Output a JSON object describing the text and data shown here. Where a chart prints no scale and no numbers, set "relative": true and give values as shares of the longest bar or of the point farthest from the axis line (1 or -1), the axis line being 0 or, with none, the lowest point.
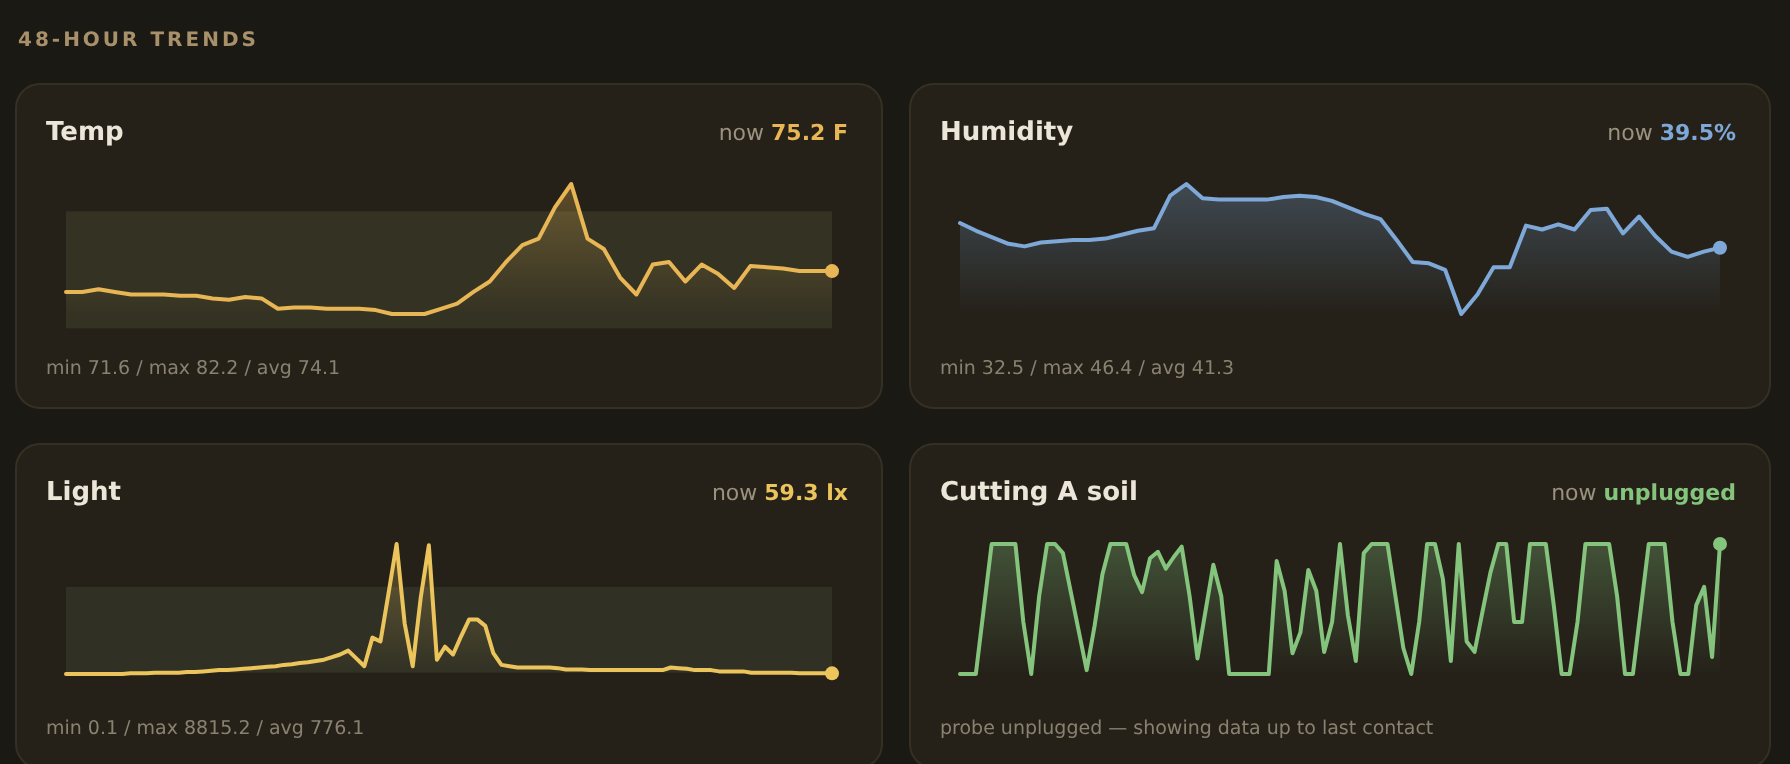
{
  "chart_data": [
    {
      "type": "line",
      "title": "Temp",
      "relative": true,
      "annotations": [
        "now",
        "75.2 F",
        "min 71.6 / max 82.2 / avg 74.1",
        "48-HOUR TRENDS"
      ],
      "bands": [
        {
          "axis": "y",
          "from": -0.11,
          "to": 0.79,
          "color": "#3a3a28"
        }
      ],
      "categories": [
        null,
        null,
        null,
        null,
        null,
        null,
        null,
        null,
        null,
        null,
        null,
        null,
        null,
        null,
        null,
        null,
        null,
        null,
        null,
        null,
        null,
        null,
        null,
        null,
        null,
        null,
        null,
        null,
        null,
        null,
        null,
        null,
        null,
        null,
        null,
        null,
        null,
        null,
        null,
        null,
        null,
        null,
        null,
        null,
        null,
        null,
        null,
        null
      ],
      "series": [
        {
          "color": "#e8b654",
          "values": [
            0.17,
            0.17,
            0.19,
            0.17,
            0.15,
            0.15,
            0.15,
            0.14,
            0.14,
            0.12,
            0.11,
            0.13,
            0.12,
            0.04,
            0.05,
            0.05,
            0.04,
            0.04,
            0.04,
            0.03,
            0,
            0,
            0,
            0.04,
            0.08,
            0.17,
            0.25,
            0.4,
            0.53,
            0.58,
            0.82,
            1,
            0.58,
            0.5,
            0.28,
            0.15,
            0.38,
            0.4,
            0.25,
            0.38,
            0.31,
            0.2,
            0.37,
            0.36,
            0.35,
            0.33,
            0.33,
            0.33
          ]
        }
      ]
    },
    {
      "type": "line",
      "title": "Humidity",
      "relative": true,
      "annotations": [
        "now",
        "39.5%",
        "min 32.5 / max 46.4 / avg 41.3"
      ],
      "categories": [
        null,
        null,
        null,
        null,
        null,
        null,
        null,
        null,
        null,
        null,
        null,
        null,
        null,
        null,
        null,
        null,
        null,
        null,
        null,
        null,
        null,
        null,
        null,
        null,
        null,
        null,
        null,
        null,
        null,
        null,
        null,
        null,
        null,
        null,
        null,
        null,
        null,
        null,
        null,
        null,
        null,
        null,
        null,
        null,
        null,
        null,
        null,
        null
      ],
      "series": [
        {
          "color": "#7ea8d8",
          "values": [
            0.7,
            0.64,
            0.59,
            0.54,
            0.52,
            0.55,
            0.56,
            0.57,
            0.57,
            0.58,
            0.61,
            0.64,
            0.66,
            0.91,
            1,
            0.89,
            0.88,
            0.88,
            0.88,
            0.88,
            0.9,
            0.91,
            0.9,
            0.87,
            0.82,
            0.77,
            0.73,
            0.57,
            0.4,
            0.39,
            0.34,
            0,
            0.15,
            0.36,
            0.36,
            0.68,
            0.65,
            0.69,
            0.65,
            0.8,
            0.81,
            0.62,
            0.75,
            0.6,
            0.48,
            0.44,
            0.48,
            0.51
          ]
        }
      ]
    },
    {
      "type": "line",
      "title": "Light",
      "relative": true,
      "annotations": [
        "now",
        "59.3 lx",
        "min 0.1 / max 8815.2 / avg 776.1"
      ],
      "bands": [
        {
          "axis": "y",
          "from": 0.01,
          "to": 0.67,
          "color": "#34382a"
        }
      ],
      "categories": [
        null,
        null,
        null,
        null,
        null,
        null,
        null,
        null,
        null,
        null,
        null,
        null,
        null,
        null,
        null,
        null,
        null,
        null,
        null,
        null,
        null,
        null,
        null,
        null,
        null,
        null,
        null,
        null,
        null,
        null,
        null,
        null,
        null,
        null,
        null,
        null,
        null,
        null,
        null,
        null,
        null,
        null,
        null,
        null,
        null,
        null,
        null,
        null,
        null,
        null,
        null,
        null,
        null,
        null,
        null,
        null,
        null,
        null,
        null,
        null,
        null,
        null,
        null,
        null,
        null,
        null,
        null,
        null,
        null,
        null,
        null,
        null,
        null,
        null,
        null,
        null,
        null,
        null,
        null,
        null,
        null,
        null,
        null,
        null,
        null,
        null,
        null,
        null,
        null,
        null,
        null,
        null,
        null,
        null,
        null,
        null
      ],
      "series": [
        {
          "color": "#ecc45c",
          "values": [
            0,
            0,
            0,
            0,
            0,
            0,
            0,
            0,
            0.005,
            0.005,
            0.005,
            0.01,
            0.01,
            0.01,
            0.01,
            0.015,
            0.015,
            0.02,
            0.025,
            0.03,
            0.03,
            0.035,
            0.04,
            0.045,
            0.05,
            0.055,
            0.06,
            0.07,
            0.075,
            0.085,
            0.09,
            0.1,
            0.11,
            0.13,
            0.15,
            0.18,
            0.12,
            0.06,
            0.28,
            0.25,
            0.62,
            1,
            0.39,
            0.06,
            0.59,
            0.99,
            0.11,
            0.21,
            0.15,
            0.29,
            0.42,
            0.42,
            0.37,
            0.16,
            0.07,
            0.06,
            0.05,
            0.05,
            0.05,
            0.05,
            0.05,
            0.045,
            0.035,
            0.035,
            0.035,
            0.03,
            0.03,
            0.03,
            0.03,
            0.03,
            0.03,
            0.03,
            0.03,
            0.03,
            0.03,
            0.05,
            0.045,
            0.04,
            0.03,
            0.03,
            0.03,
            0.02,
            0.02,
            0.02,
            0.02,
            0.01,
            0.01,
            0.01,
            0.01,
            0.01,
            0.01,
            0.005,
            0.005,
            0.005,
            0.005,
            0.005
          ]
        }
      ]
    },
    {
      "type": "line",
      "title": "Cutting A soil",
      "relative": true,
      "annotations": [
        "now",
        "unplugged",
        "probe unplugged — showing data up to last contact"
      ],
      "categories": [
        null,
        null,
        null,
        null,
        null,
        null,
        null,
        null,
        null,
        null,
        null,
        null,
        null,
        null,
        null,
        null,
        null,
        null,
        null,
        null,
        null,
        null,
        null,
        null,
        null,
        null,
        null,
        null,
        null,
        null,
        null,
        null,
        null,
        null,
        null,
        null,
        null,
        null,
        null,
        null,
        null,
        null,
        null,
        null,
        null,
        null,
        null,
        null,
        null,
        null,
        null,
        null,
        null,
        null,
        null,
        null,
        null,
        null,
        null,
        null,
        null,
        null,
        null,
        null,
        null,
        null,
        null,
        null,
        null,
        null,
        null,
        null,
        null,
        null,
        null,
        null,
        null,
        null,
        null,
        null,
        null,
        null,
        null,
        null,
        null,
        null,
        null,
        null,
        null,
        null,
        null,
        null,
        null,
        null,
        null,
        null,
        null
      ],
      "series": [
        {
          "color": "#84c47c",
          "values": [
            0,
            0,
            0,
            0.5,
            1,
            1,
            1,
            1,
            0.4,
            0,
            0.6,
            1,
            1,
            0.93,
            0.63,
            0.33,
            0.03,
            0.37,
            0.77,
            1,
            1,
            1,
            0.76,
            0.63,
            0.89,
            0.94,
            0.81,
            0.9,
            0.98,
            0.6,
            0.12,
            0.48,
            0.84,
            0.6,
            0,
            0,
            0,
            0,
            0,
            0,
            0.87,
            0.64,
            0.16,
            0.32,
            0.8,
            0.64,
            0.17,
            0.4,
            1,
            0.45,
            0.1,
            0.93,
            1,
            1,
            1,
            0.6,
            0.2,
            0,
            0.4,
            1,
            1,
            0.73,
            0.1,
            1,
            0.25,
            0.17,
            0.48,
            0.78,
            1,
            1,
            0.4,
            0.4,
            1,
            1,
            1,
            0.53,
            0,
            0,
            0.4,
            1,
            1,
            1,
            1,
            0.6,
            0,
            0,
            0.5,
            1,
            1,
            1,
            0.4,
            0,
            0,
            0.53,
            0.67,
            0.13,
            1
          ]
        }
      ]
    }
  ]
}
